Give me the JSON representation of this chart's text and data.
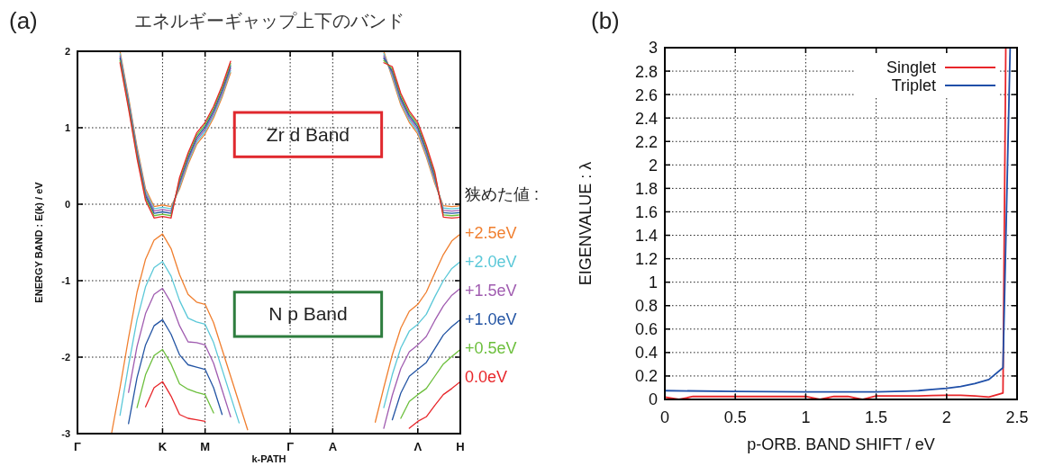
{
  "chart_data": [
    {
      "type": "line",
      "title": "エネルギーギャップ上下のバンド",
      "xlabel": "k-PATH",
      "ylabel": "ENERGY BAND : E(k) / eV",
      "legend_title": "狭めた値 :",
      "legend": "right",
      "grid": true,
      "annotations": [
        "(a)",
        "Zr d Band",
        "N p Band"
      ],
      "categories": [
        "Γ",
        null,
        null,
        null,
        null,
        null,
        null,
        null,
        null,
        null,
        "K",
        null,
        null,
        null,
        null,
        "M",
        null,
        null,
        null,
        null,
        null,
        null,
        null,
        null,
        null,
        "Γ",
        null,
        null,
        null,
        null,
        "A",
        null,
        null,
        null,
        null,
        null,
        null,
        null,
        null,
        null,
        "Λ",
        null,
        null,
        null,
        null,
        "H"
      ],
      "ylim": [
        -3,
        2
      ],
      "yticks": [
        -3,
        -2,
        -1,
        0,
        1,
        2
      ],
      "series": [
        {
          "name": "+2.5eV",
          "color": "#f07f2f",
          "values": [
            null,
            null,
            null,
            null,
            -3,
            -2.4,
            -1.75,
            -1.15,
            -0.72,
            -0.47,
            -0.39,
            -0.58,
            -0.92,
            -1.18,
            -1.28,
            -1.31,
            -1.55,
            -1.9,
            -2.25,
            -2.6,
            -2.95,
            null,
            null,
            null,
            null,
            null,
            null,
            null,
            null,
            null,
            null,
            null,
            null,
            null,
            null,
            -2.85,
            -2.4,
            -1.97,
            -1.62,
            -1.4,
            -1.31,
            -1.15,
            -0.9,
            -0.66,
            -0.48,
            -0.39
          ]
        },
        {
          "name": "+2.0eV",
          "color": "#5bc8d8",
          "values": [
            null,
            null,
            null,
            null,
            null,
            -2.76,
            -2.11,
            -1.51,
            -1.08,
            -0.83,
            -0.75,
            -0.94,
            -1.26,
            -1.49,
            -1.54,
            -1.57,
            -1.81,
            -2.16,
            -2.51,
            -2.86,
            null,
            null,
            null,
            null,
            null,
            null,
            null,
            null,
            null,
            null,
            null,
            null,
            null,
            null,
            null,
            null,
            -2.66,
            -2.23,
            -1.88,
            -1.66,
            -1.57,
            -1.44,
            -1.21,
            -1.0,
            -0.84,
            -0.75
          ]
        },
        {
          "name": "+1.5eV",
          "color": "#a05cb0",
          "values": [
            null,
            null,
            null,
            null,
            null,
            null,
            -2.46,
            -1.86,
            -1.43,
            -1.18,
            -1.1,
            -1.29,
            -1.59,
            -1.8,
            -1.81,
            -1.84,
            -2.08,
            -2.43,
            -2.78,
            null,
            null,
            null,
            null,
            null,
            null,
            null,
            null,
            null,
            null,
            null,
            null,
            null,
            null,
            null,
            null,
            null,
            -2.93,
            -2.5,
            -2.15,
            -1.93,
            -1.84,
            -1.73,
            -1.52,
            -1.33,
            -1.19,
            -1.1
          ]
        },
        {
          "name": "+1.0eV",
          "color": "#2455a4",
          "values": [
            null,
            null,
            null,
            null,
            null,
            null,
            -2.87,
            -2.27,
            -1.84,
            -1.59,
            -1.51,
            -1.7,
            -1.97,
            -2.1,
            -2.13,
            -2.16,
            -2.4,
            -2.75,
            null,
            null,
            null,
            null,
            null,
            null,
            null,
            null,
            null,
            null,
            null,
            null,
            null,
            null,
            null,
            null,
            null,
            null,
            null,
            -2.82,
            -2.47,
            -2.25,
            -2.16,
            -2.07,
            -1.89,
            -1.71,
            -1.6,
            -1.51
          ]
        },
        {
          "name": "+0.5eV",
          "color": "#6cbf3c",
          "values": [
            null,
            null,
            null,
            null,
            null,
            null,
            null,
            -2.66,
            -2.23,
            -1.98,
            -1.9,
            -2.09,
            -2.35,
            -2.42,
            -2.46,
            -2.49,
            -2.73,
            null,
            null,
            null,
            null,
            null,
            null,
            null,
            null,
            null,
            null,
            null,
            null,
            null,
            null,
            null,
            null,
            null,
            null,
            null,
            null,
            null,
            -2.8,
            -2.58,
            -2.49,
            -2.41,
            -2.25,
            -2.09,
            -1.99,
            -1.9
          ]
        },
        {
          "name": "0.0eV",
          "color": "#e8262a",
          "values": [
            null,
            null,
            null,
            null,
            null,
            null,
            null,
            null,
            -2.65,
            -2.4,
            -2.32,
            -2.51,
            -2.75,
            -2.8,
            -2.82,
            -2.84,
            null,
            null,
            null,
            null,
            null,
            null,
            null,
            null,
            null,
            null,
            null,
            null,
            null,
            null,
            null,
            null,
            null,
            null,
            null,
            null,
            null,
            null,
            null,
            -2.93,
            -2.84,
            -2.78,
            -2.63,
            -2.49,
            -2.41,
            -2.32
          ]
        },
        {
          "color": "#f07f2f",
          "values": [
            null,
            null,
            null,
            null,
            null,
            2,
            1.4,
            0.75,
            0.2,
            -0.03,
            -0.01,
            -0.03,
            0.2,
            0.52,
            0.78,
            0.92,
            1.13,
            1.4,
            1.72,
            null,
            null,
            null,
            null,
            null,
            null,
            null,
            null,
            null,
            null,
            null,
            null,
            null,
            null,
            null,
            null,
            null,
            2,
            1.65,
            1.3,
            1.07,
            0.92,
            0.62,
            0.27,
            -0.02,
            -0.03,
            -0.02
          ]
        },
        {
          "color": "#5bc8d8",
          "values": [
            null,
            null,
            null,
            null,
            null,
            1.97,
            1.37,
            0.72,
            0.17,
            -0.06,
            -0.04,
            -0.06,
            0.23,
            0.55,
            0.81,
            0.95,
            1.16,
            1.43,
            1.75,
            null,
            null,
            null,
            null,
            null,
            null,
            null,
            null,
            null,
            null,
            null,
            null,
            null,
            null,
            null,
            null,
            null,
            1.97,
            1.68,
            1.33,
            1.1,
            0.95,
            0.65,
            0.3,
            -0.05,
            -0.06,
            -0.05
          ]
        },
        {
          "color": "#a05cb0",
          "values": [
            null,
            null,
            null,
            null,
            null,
            1.94,
            1.34,
            0.69,
            0.14,
            -0.09,
            -0.07,
            -0.09,
            0.26,
            0.58,
            0.84,
            0.98,
            1.19,
            1.46,
            1.78,
            null,
            null,
            null,
            null,
            null,
            null,
            null,
            null,
            null,
            null,
            null,
            null,
            null,
            null,
            null,
            null,
            null,
            1.94,
            1.71,
            1.36,
            1.13,
            0.98,
            0.68,
            0.33,
            -0.08,
            -0.09,
            -0.08
          ]
        },
        {
          "color": "#2455a4",
          "values": [
            null,
            null,
            null,
            null,
            null,
            1.91,
            1.31,
            0.66,
            0.11,
            -0.12,
            -0.1,
            -0.12,
            0.29,
            0.61,
            0.87,
            1.01,
            1.22,
            1.49,
            1.81,
            null,
            null,
            null,
            null,
            null,
            null,
            null,
            null,
            null,
            null,
            null,
            null,
            null,
            null,
            null,
            null,
            null,
            1.91,
            1.74,
            1.39,
            1.16,
            1.01,
            0.71,
            0.36,
            -0.11,
            -0.12,
            -0.11
          ]
        },
        {
          "color": "#6cbf3c",
          "values": [
            null,
            null,
            null,
            null,
            null,
            1.88,
            1.28,
            0.63,
            0.08,
            -0.15,
            -0.13,
            -0.15,
            0.32,
            0.64,
            0.9,
            1.04,
            1.25,
            1.52,
            1.84,
            null,
            null,
            null,
            null,
            null,
            null,
            null,
            null,
            null,
            null,
            null,
            null,
            null,
            null,
            null,
            null,
            null,
            1.88,
            1.77,
            1.42,
            1.19,
            1.04,
            0.74,
            0.39,
            -0.14,
            -0.15,
            -0.14
          ]
        },
        {
          "color": "#e8262a",
          "values": [
            null,
            null,
            null,
            null,
            null,
            1.85,
            1.25,
            0.6,
            0.05,
            -0.18,
            -0.16,
            -0.18,
            0.35,
            0.67,
            0.93,
            1.07,
            1.28,
            1.55,
            1.87,
            null,
            null,
            null,
            null,
            null,
            null,
            null,
            null,
            null,
            null,
            null,
            null,
            null,
            null,
            null,
            null,
            null,
            1.85,
            1.8,
            1.45,
            1.22,
            1.07,
            0.77,
            0.42,
            -0.17,
            -0.18,
            -0.17
          ]
        }
      ]
    },
    {
      "type": "line",
      "xlabel": "p-ORB. BAND SHIFT / eV",
      "ylabel": "EIGENVALUE : λ",
      "legend": "top right",
      "grid": true,
      "annotations": [
        "(b)"
      ],
      "xlim": [
        0,
        2.5
      ],
      "xticks": [
        0,
        0.5,
        1,
        1.5,
        2,
        2.5
      ],
      "ylim": [
        0,
        3
      ],
      "yticks": [
        0,
        0.2,
        0.4,
        0.6,
        0.8,
        1,
        1.2,
        1.4,
        1.6,
        1.8,
        2,
        2.2,
        2.4,
        2.6,
        2.8,
        3
      ],
      "series": [
        {
          "name": "Singlet",
          "color": "#e8262a",
          "x": [
            0,
            0.1,
            0.2,
            0.3,
            0.4,
            0.5,
            0.6,
            0.7,
            0.8,
            0.9,
            1.0,
            1.1,
            1.2,
            1.3,
            1.4,
            1.5,
            1.6,
            1.7,
            1.8,
            1.9,
            2.0,
            2.1,
            2.2,
            2.3,
            2.4,
            2.42
          ],
          "values": [
            0.02,
            0,
            0.025,
            0.025,
            0.025,
            0.025,
            0.025,
            0.025,
            0.025,
            0.025,
            0.025,
            0,
            0.025,
            0.025,
            0,
            0.03,
            0.03,
            0.03,
            0.03,
            0.033,
            0.035,
            0.035,
            0.03,
            0.02,
            0.055,
            3
          ]
        },
        {
          "name": "Triplet",
          "color": "#1f4fa8",
          "x": [
            0,
            0.5,
            1.0,
            1.5,
            1.7,
            1.8,
            1.9,
            2.0,
            2.1,
            2.2,
            2.3,
            2.4,
            2.451
          ],
          "values": [
            0.075,
            0.068,
            0.065,
            0.065,
            0.07,
            0.075,
            0.085,
            0.095,
            0.11,
            0.135,
            0.17,
            0.27,
            3
          ]
        }
      ]
    }
  ]
}
